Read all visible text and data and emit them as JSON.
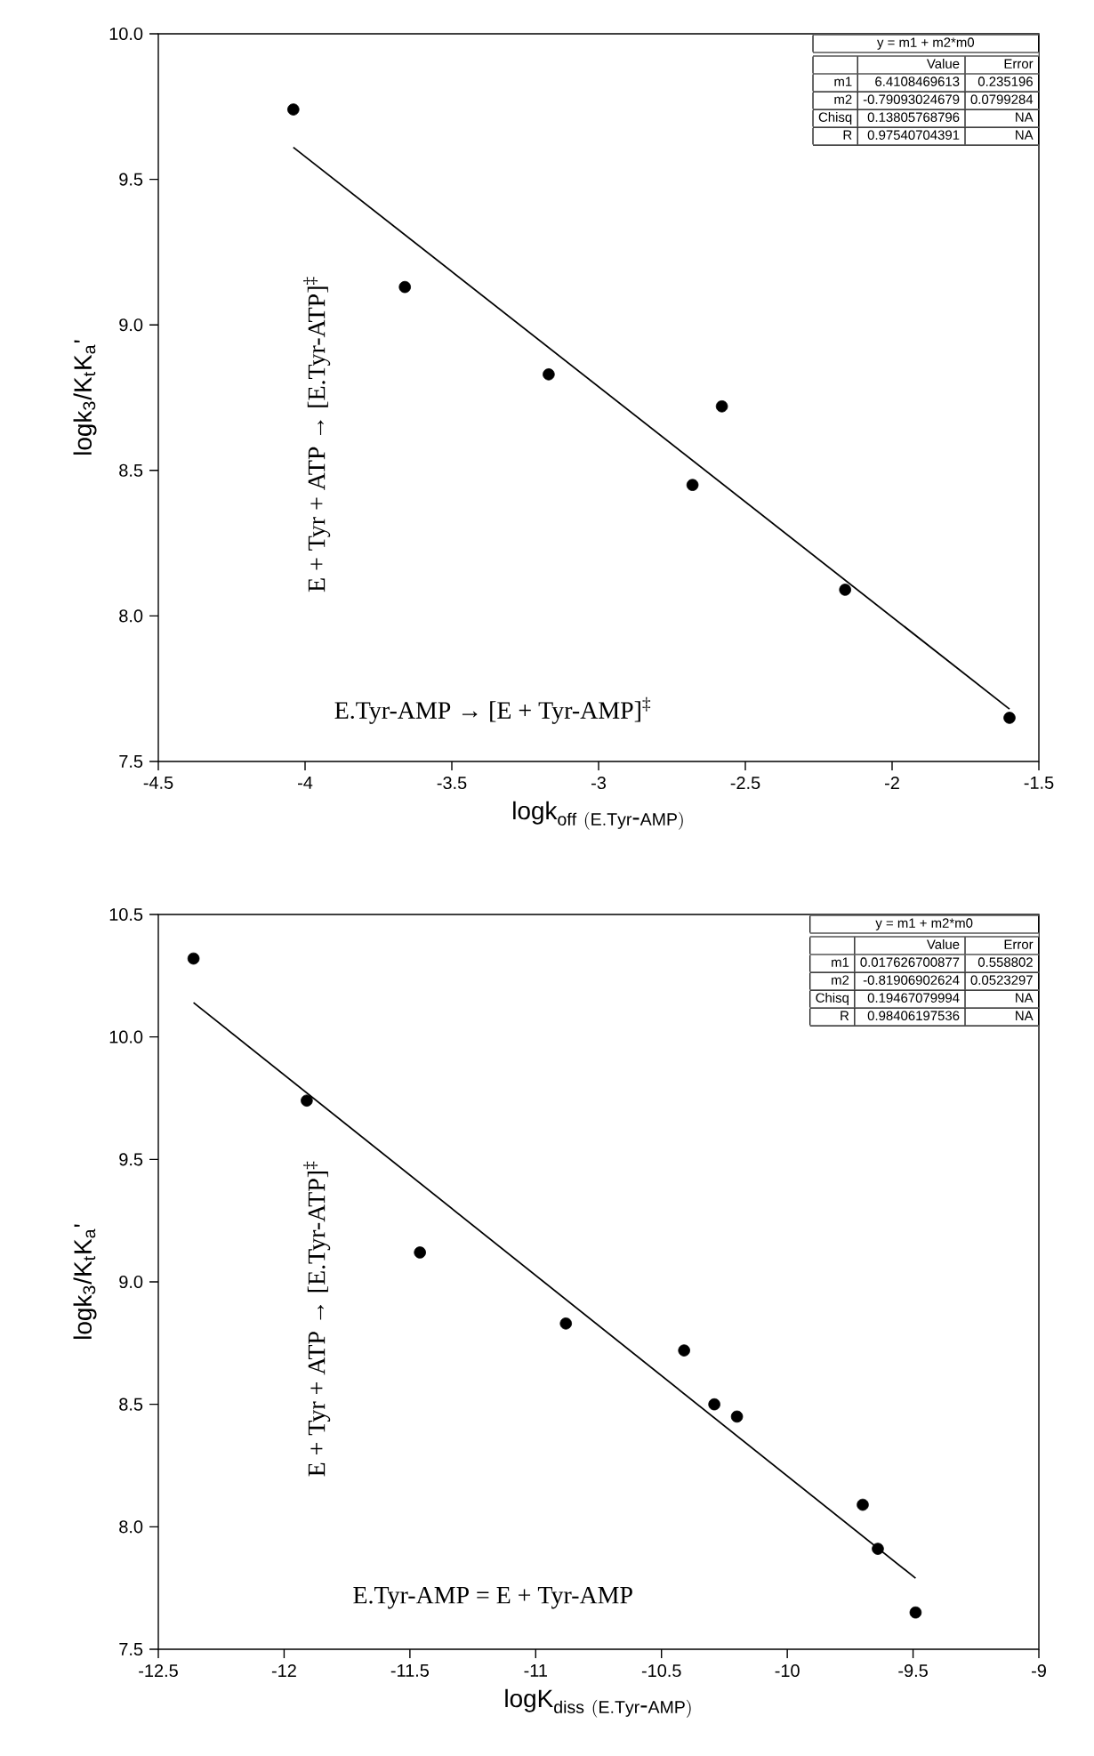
{
  "chart_data": [
    {
      "type": "scatter",
      "xlabel": "\\mathrm{logk}_{\\mathrm{off\\ (E.Tyr\\mbox{-}AMP)}}",
      "ylabel": "logk$_{3}$/K$_{t}$K$_{a}$'",
      "xlim": [
        -4.5,
        -1.5
      ],
      "xticks": [
        -4.5,
        -4,
        -3.5,
        -3,
        -2.5,
        -2,
        -1.5
      ],
      "ylim": [
        7.5,
        10
      ],
      "yticks": [
        7.5,
        {
          "value": 8,
          "label": "8.0"
        },
        8.5,
        {
          "value": 9,
          "label": "9.0"
        },
        9.5,
        {
          "value": 10,
          "label": "10.0"
        }
      ],
      "grid": false,
      "series": [
        {
          "marker": "circle",
          "color": "#000000",
          "x": [
            -4.04,
            -3.66,
            -3.17,
            -2.58,
            -2.68,
            -2.16,
            -1.6
          ],
          "values": [
            9.74,
            9.13,
            8.83,
            8.72,
            8.45,
            8.09,
            7.65
          ]
        },
        {
          "type": "line",
          "color": "#000000",
          "x": [
            -4.04,
            -1.6
          ],
          "values": [
            9.61,
            7.68
          ]
        }
      ],
      "annotations": [
        "E + Tyr + ATP → [E.Tyr-ATP]$^{‡}$",
        "E.Tyr-AMP → [E + Tyr-AMP]$^{‡}$",
        "y = m1 + m2*m0",
        "Value",
        "Error",
        "m1",
        "6.4108469613",
        "0.235196",
        "m2",
        "-0.79093024679",
        "0.0799284",
        "Chisq",
        "0.13805768796",
        "NA",
        "R",
        "0.97540704391",
        "NA"
      ]
    },
    {
      "type": "scatter",
      "xlabel": "\\mathrm{logK}_{\\mathrm{diss\\ (E.Tyr\\mbox{-}AMP)}}",
      "ylabel": "logk$_{3}$/K$_{t}$K$_{a}$'",
      "xlim": [
        -12.5,
        -9
      ],
      "xticks": [
        -12.5,
        -12,
        -11.5,
        -11,
        -10.5,
        -10,
        -9.5,
        -9
      ],
      "ylim": [
        7.5,
        10.5
      ],
      "yticks": [
        7.5,
        {
          "value": 8,
          "label": "8.0"
        },
        8.5,
        {
          "value": 9,
          "label": "9.0"
        },
        9.5,
        {
          "value": 10,
          "label": "10.0"
        },
        10.5
      ],
      "grid": false,
      "series": [
        {
          "marker": "circle",
          "color": "#000000",
          "x": [
            -12.36,
            -11.91,
            -11.46,
            -10.88,
            -10.41,
            -10.29,
            -10.2,
            -9.7,
            -9.64,
            -9.49
          ],
          "values": [
            10.32,
            9.74,
            9.12,
            8.83,
            8.72,
            8.5,
            8.45,
            8.09,
            7.91,
            7.65
          ]
        },
        {
          "type": "line",
          "color": "#000000",
          "x": [
            -12.36,
            -9.49
          ],
          "values": [
            10.14,
            7.79
          ]
        }
      ],
      "annotations": [
        "E + Tyr + ATP → [E.Tyr-ATP]$^{‡}$",
        "E.Tyr-AMP = E + Tyr-AMP",
        "y = m1 + m2*m0",
        "Value",
        "Error",
        "m1",
        "0.017626700877",
        "0.558802",
        "m2",
        "-0.81906902624",
        "0.0523297",
        "Chisq",
        "0.19467079994",
        "NA",
        "R",
        "0.98406197536",
        "NA"
      ]
    }
  ]
}
